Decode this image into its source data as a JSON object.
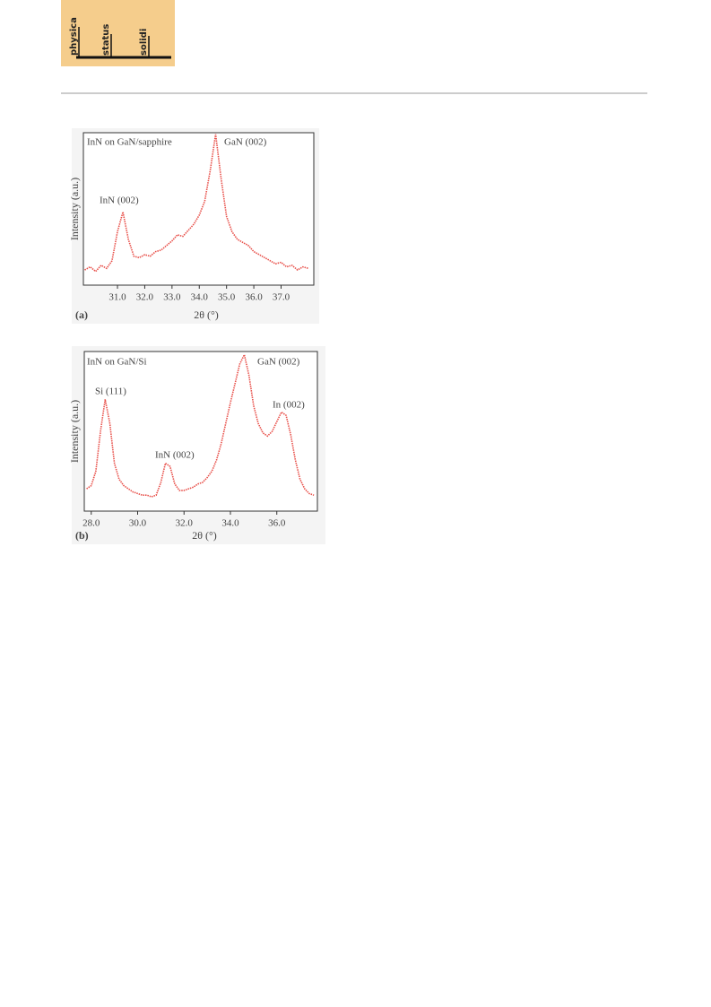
{
  "header": {
    "logo": [
      "physica",
      "status",
      "solidi"
    ]
  },
  "chart_data": [
    {
      "type": "line",
      "title": "InN on GaN/sapphire",
      "panel_label": "(a)",
      "x_label": "2θ (°)",
      "y_label": "Intensity (a.u.)",
      "annotations": [
        "GaN (002)",
        "InN (002)"
      ],
      "color": "#e8504a",
      "x": [
        29.8,
        30.0,
        30.2,
        30.4,
        30.6,
        30.8,
        31.0,
        31.2,
        31.4,
        31.6,
        31.8,
        32.0,
        32.2,
        32.4,
        32.6,
        32.8,
        33.0,
        33.2,
        33.4,
        33.6,
        33.8,
        34.0,
        34.2,
        34.4,
        34.6,
        34.8,
        35.0,
        35.2,
        35.4,
        35.6,
        35.8,
        36.0,
        36.2,
        36.4,
        36.6,
        36.8,
        37.0,
        37.2,
        37.4,
        37.6,
        37.8,
        38.0
      ],
      "values": [
        10,
        12,
        9,
        13,
        11,
        16,
        35,
        48,
        30,
        19,
        18,
        20,
        19,
        22,
        23,
        26,
        29,
        33,
        32,
        36,
        40,
        46,
        55,
        75,
        99,
        70,
        45,
        35,
        30,
        28,
        26,
        22,
        20,
        18,
        16,
        14,
        15,
        12,
        13,
        10,
        12,
        11
      ],
      "xlim": [
        29.75,
        38.2
      ],
      "ylim": [
        0,
        100
      ],
      "xticks": [
        {
          "value": 31,
          "label": "31.0"
        },
        {
          "value": 32,
          "label": "32.0"
        },
        {
          "value": 33,
          "label": "33.0"
        },
        {
          "value": 34,
          "label": "34.0"
        },
        {
          "value": 35,
          "label": "35.0"
        },
        {
          "value": 36,
          "label": "36.0"
        },
        {
          "value": 37,
          "label": "37.0"
        }
      ]
    },
    {
      "type": "line",
      "title": "InN on GaN/Si",
      "panel_label": "(b)",
      "x_label": "2θ (°)",
      "y_label": "Intensity (a.u.)",
      "annotations": [
        "Si (111)",
        "InN (002)",
        "GaN (002)",
        "In (002)"
      ],
      "color": "#e8504a",
      "x": [
        27.8,
        28.0,
        28.2,
        28.4,
        28.6,
        28.8,
        29.0,
        29.2,
        29.4,
        29.6,
        29.8,
        30.0,
        30.2,
        30.4,
        30.6,
        30.8,
        31.0,
        31.2,
        31.4,
        31.6,
        31.8,
        32.0,
        32.2,
        32.4,
        32.6,
        32.8,
        33.0,
        33.2,
        33.4,
        33.6,
        33.8,
        34.0,
        34.2,
        34.4,
        34.6,
        34.8,
        35.0,
        35.2,
        35.4,
        35.6,
        35.8,
        36.0,
        36.2,
        36.4,
        36.6,
        36.8,
        37.0,
        37.2,
        37.4,
        37.6
      ],
      "values": [
        14,
        16,
        25,
        50,
        70,
        55,
        30,
        20,
        16,
        14,
        12,
        11,
        10,
        10,
        9,
        10,
        18,
        30,
        28,
        17,
        13,
        13,
        14,
        15,
        17,
        18,
        21,
        25,
        32,
        42,
        55,
        68,
        80,
        92,
        98,
        85,
        66,
        55,
        49,
        47,
        50,
        56,
        62,
        60,
        48,
        32,
        20,
        14,
        11,
        10
      ],
      "xlim": [
        27.7,
        37.75
      ],
      "ylim": [
        0,
        100
      ],
      "xticks": [
        {
          "value": 28,
          "label": "28.0"
        },
        {
          "value": 30,
          "label": "30.0"
        },
        {
          "value": 32,
          "label": "32.0"
        },
        {
          "value": 34,
          "label": "34.0"
        },
        {
          "value": 36,
          "label": "36.0"
        }
      ]
    }
  ]
}
